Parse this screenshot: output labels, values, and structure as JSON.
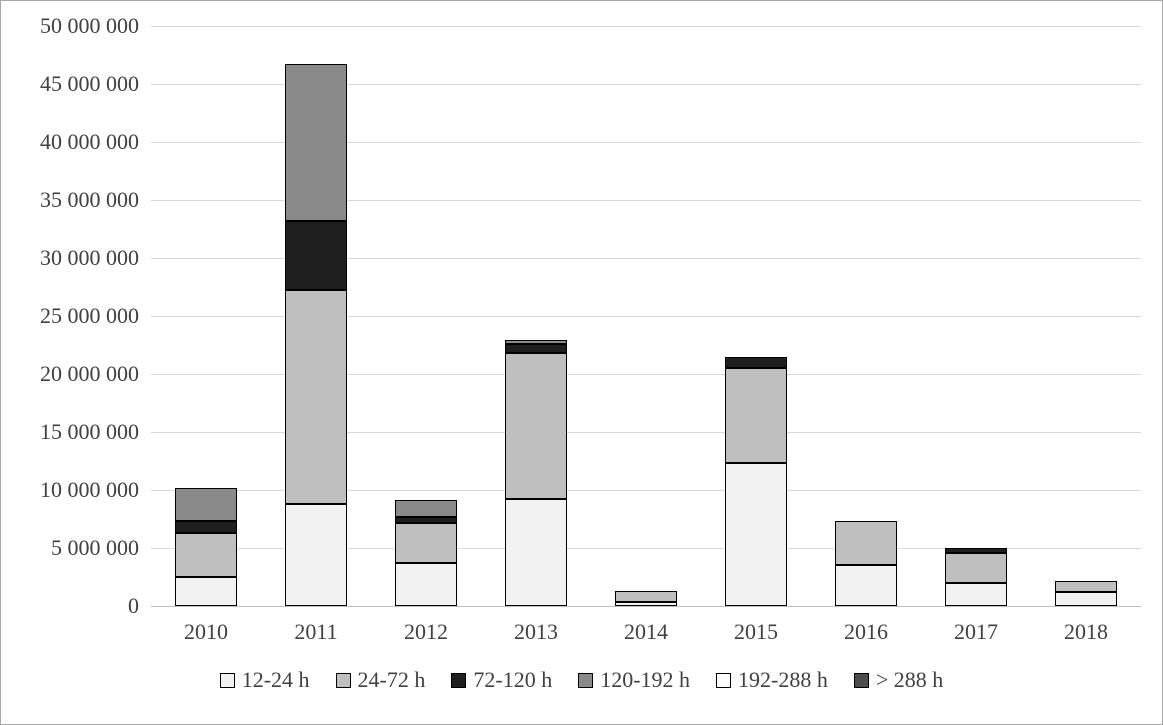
{
  "chart_data": {
    "type": "bar",
    "stacked": true,
    "title": "",
    "xlabel": "",
    "ylabel": "",
    "categories": [
      "2010",
      "2011",
      "2012",
      "2013",
      "2014",
      "2015",
      "2016",
      "2017",
      "2018"
    ],
    "series": [
      {
        "name": "12-24 h",
        "color": "#f2f2f2",
        "values": [
          2500000,
          8800000,
          3700000,
          9200000,
          350000,
          12300000,
          3500000,
          2000000,
          1200000
        ]
      },
      {
        "name": "24-72 h",
        "color": "#bfbfbf",
        "values": [
          3800000,
          18400000,
          3500000,
          12600000,
          950000,
          8200000,
          3800000,
          2600000,
          1000000
        ]
      },
      {
        "name": "72-120 h",
        "color": "#1f1f1f",
        "values": [
          1000000,
          6000000,
          500000,
          800000,
          0,
          1000000,
          0,
          400000,
          0
        ]
      },
      {
        "name": "120-192 h",
        "color": "#8a8a8a",
        "values": [
          2900000,
          13500000,
          1400000,
          300000,
          0,
          0,
          0,
          0,
          0
        ]
      },
      {
        "name": "192-288 h",
        "color": "#ffffff",
        "values": [
          0,
          0,
          0,
          0,
          0,
          0,
          0,
          0,
          0
        ]
      },
      {
        "name": "> 288 h",
        "color": "#4d4d4d",
        "values": [
          0,
          0,
          0,
          0,
          0,
          0,
          0,
          0,
          0
        ]
      }
    ],
    "ylim": [
      0,
      50000000
    ],
    "ytick_step": 5000000,
    "grid": true,
    "gridline_color": "#d9d9d9",
    "bar_border_color": "#000000",
    "legend_position": "bottom",
    "tick_label_format": "space-separated thousands"
  }
}
